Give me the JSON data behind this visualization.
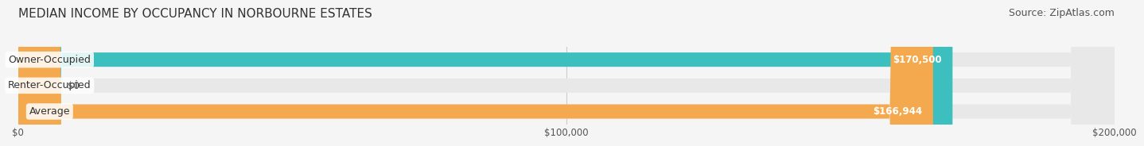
{
  "title": "MEDIAN INCOME BY OCCUPANCY IN NORBOURNE ESTATES",
  "source": "Source: ZipAtlas.com",
  "categories": [
    "Owner-Occupied",
    "Renter-Occupied",
    "Average"
  ],
  "values": [
    170500,
    0,
    166944
  ],
  "bar_colors": [
    "#3dbfbf",
    "#b8a0cc",
    "#f5a94e"
  ],
  "label_colors": [
    "#3dbfbf",
    "#b8a0cc",
    "#f5a94e"
  ],
  "xlim": [
    0,
    200000
  ],
  "xticks": [
    0,
    100000,
    200000
  ],
  "xtick_labels": [
    "$0",
    "$100,000",
    "$200,000"
  ],
  "value_labels": [
    "$170,500",
    "$0",
    "$166,944"
  ],
  "bar_height": 0.55,
  "background_color": "#f5f5f5",
  "title_fontsize": 11,
  "source_fontsize": 9,
  "label_fontsize": 9,
  "value_fontsize": 8.5
}
